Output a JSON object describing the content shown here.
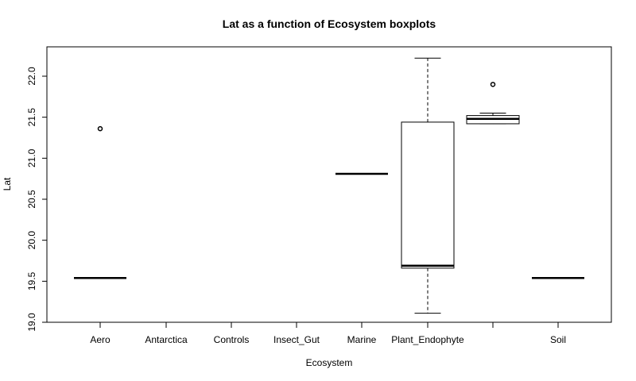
{
  "chart_data": {
    "type": "boxplot",
    "title": "Lat as a function of Ecosystem boxplots",
    "xlabel": "Ecosystem",
    "ylabel": "Lat",
    "ylim": [
      19.0,
      22.3
    ],
    "yticks": [
      "19.0",
      "19.5",
      "20.0",
      "20.5",
      "21.0",
      "21.5",
      "22.0"
    ],
    "categories": [
      "Aero",
      "Antarctica",
      "Controls",
      "Insect_Gut",
      "Marine",
      "Plant_Endophyte",
      "",
      "Soil"
    ],
    "boxes": [
      {
        "category": "Aero",
        "min": 19.54,
        "q1": 19.54,
        "median": 19.54,
        "q3": 19.54,
        "max": 19.54,
        "outliers": [
          21.36
        ]
      },
      {
        "category": "Antarctica",
        "min": null,
        "q1": null,
        "median": null,
        "q3": null,
        "max": null,
        "outliers": []
      },
      {
        "category": "Controls",
        "min": null,
        "q1": null,
        "median": null,
        "q3": null,
        "max": null,
        "outliers": []
      },
      {
        "category": "Insect_Gut",
        "min": null,
        "q1": null,
        "median": null,
        "q3": null,
        "max": null,
        "outliers": []
      },
      {
        "category": "Marine",
        "min": 20.81,
        "q1": 20.81,
        "median": 20.81,
        "q3": 20.81,
        "max": 20.81,
        "outliers": []
      },
      {
        "category": "Plant_Endophyte",
        "min": 19.11,
        "q1": 19.66,
        "median": 19.69,
        "q3": 21.44,
        "max": 22.22,
        "outliers": []
      },
      {
        "category": "",
        "min": 21.42,
        "q1": 21.42,
        "median": 21.48,
        "q3": 21.52,
        "max": 21.55,
        "outliers": [
          21.9
        ]
      },
      {
        "category": "Soil",
        "min": 19.54,
        "q1": 19.54,
        "median": 19.54,
        "q3": 19.54,
        "max": 19.54,
        "outliers": []
      }
    ],
    "grid": false,
    "legend": "none"
  }
}
